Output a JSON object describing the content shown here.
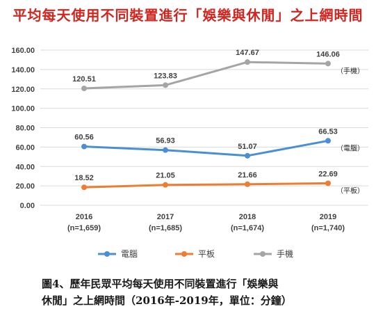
{
  "title": "平均每天使用不同裝置進行「娛樂與休閒」之上網時間",
  "caption": {
    "line1": "圖4、歷年民眾平均每天使用不同裝置進行「娛樂與",
    "line2": "休閒」之上網時間（2016年-2019年，單位：分鐘）"
  },
  "chart_data": {
    "type": "line",
    "title": "平均每天使用不同裝置進行「娛樂與休閒」之上網時間",
    "categories": [
      "2016",
      "2017",
      "2018",
      "2019"
    ],
    "category_sublabels": [
      "(n=1,659)",
      "(n=1,685)",
      "(n=1,674)",
      "(n=1,740)"
    ],
    "y_ticks": [
      "0.00",
      "20.00",
      "40.00",
      "60.00",
      "80.00",
      "100.00",
      "120.00",
      "140.00",
      "160.00"
    ],
    "ylim": [
      0,
      160
    ],
    "grid": true,
    "legend_position": "bottom",
    "series": [
      {
        "name": "電腦",
        "end_label": "（電腦）",
        "color": "#4a8fd4",
        "values": [
          60.56,
          56.93,
          51.07,
          66.53
        ],
        "labels": [
          "60.56",
          "56.93",
          "51.07",
          "66.53"
        ]
      },
      {
        "name": "平板",
        "end_label": "（平板）",
        "color": "#ed7d31",
        "values": [
          18.52,
          21.05,
          21.66,
          22.69
        ],
        "labels": [
          "18.52",
          "21.05",
          "21.66",
          "22.69"
        ]
      },
      {
        "name": "手機",
        "end_label": "（手機）",
        "color": "#a5a5a5",
        "values": [
          120.51,
          123.83,
          147.67,
          146.06
        ],
        "labels": [
          "120.51",
          "123.83",
          "147.67",
          "146.06"
        ]
      }
    ]
  }
}
